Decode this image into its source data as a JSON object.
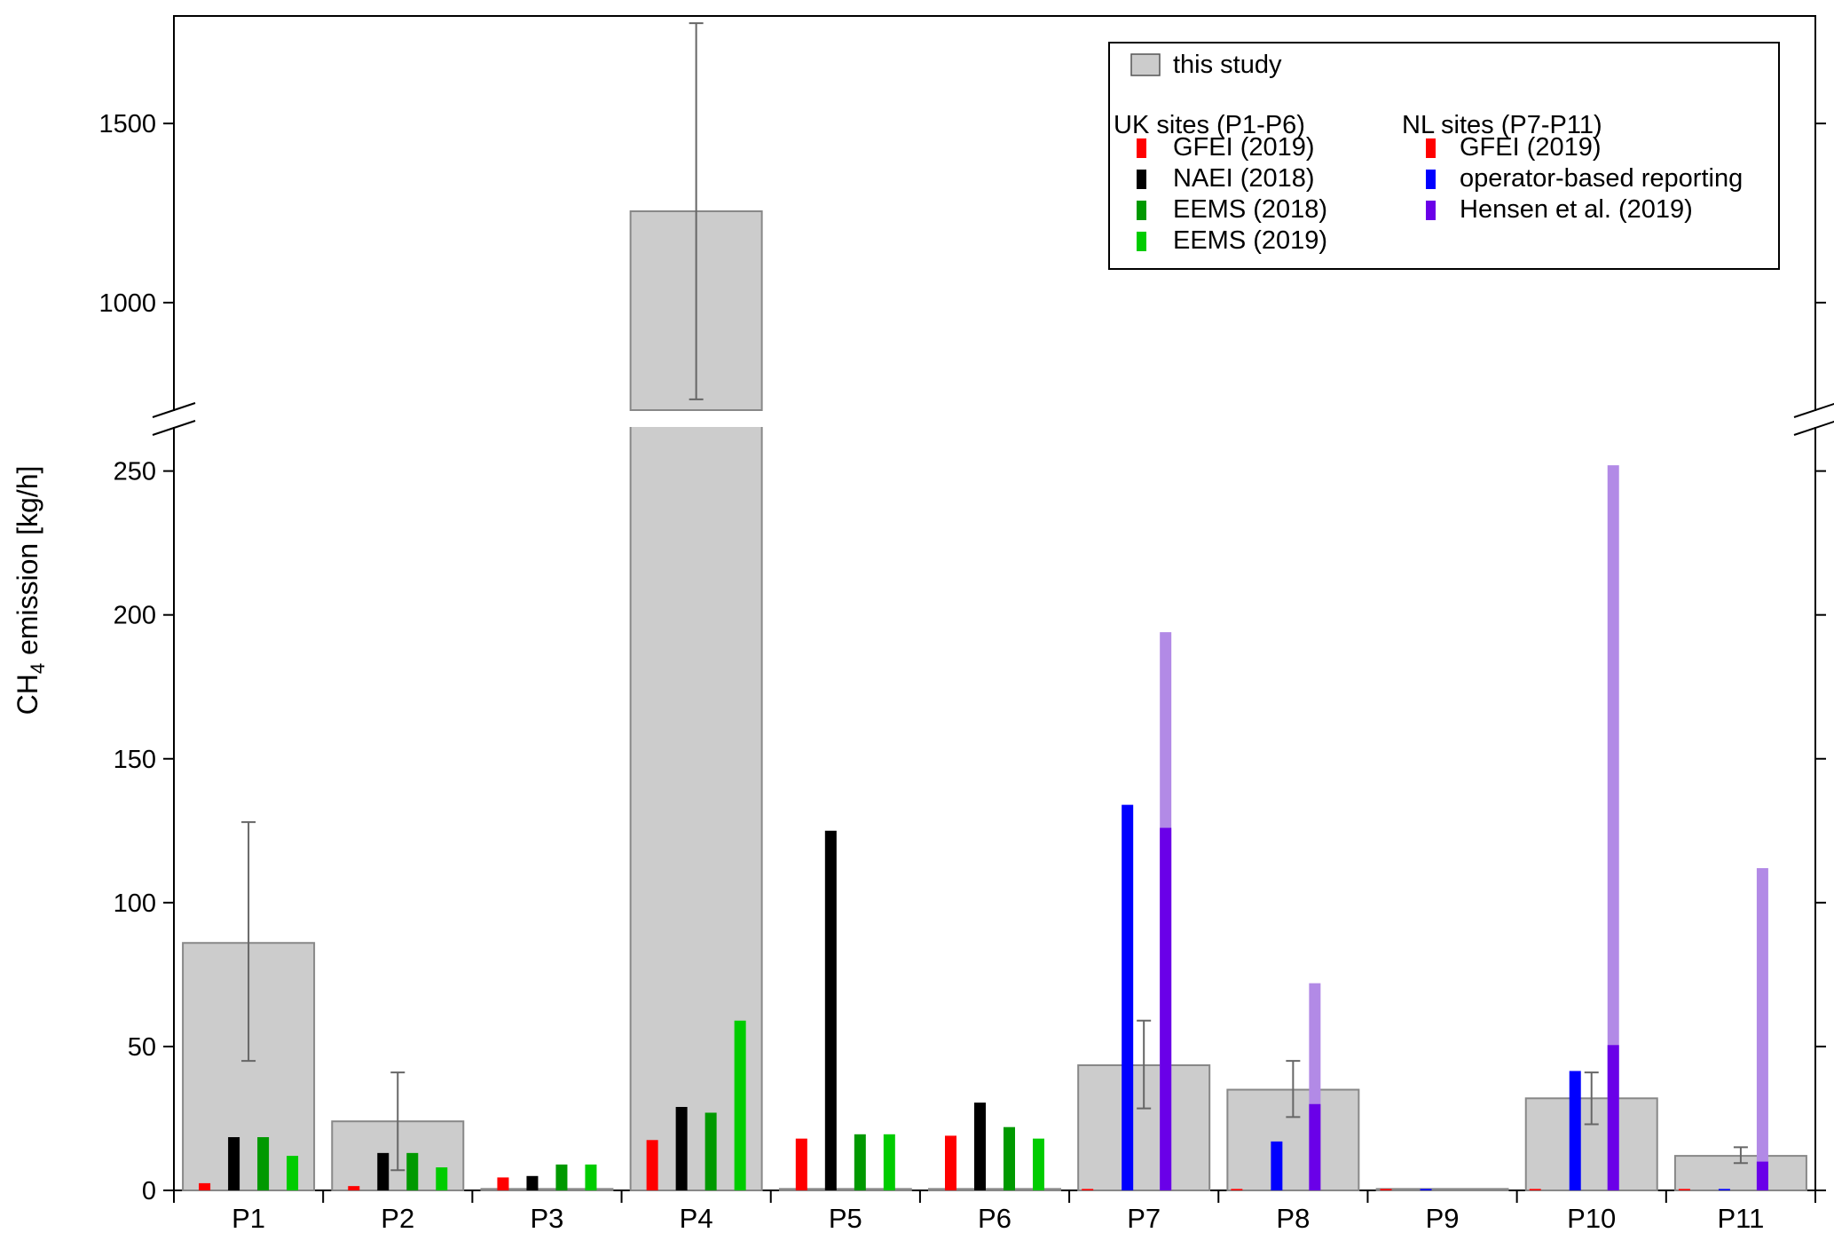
{
  "chart_data": {
    "type": "bar",
    "ylabel_main": "CH",
    "ylabel_sub": "4",
    "ylabel_rest": " emission [kg/h]",
    "categories": [
      "P1",
      "P2",
      "P3",
      "P4",
      "P5",
      "P6",
      "P7",
      "P8",
      "P9",
      "P10",
      "P11"
    ],
    "y_axis_lower": {
      "range": [
        0,
        265
      ],
      "ticks": [
        "0",
        "50",
        "100",
        "150",
        "200",
        "250"
      ]
    },
    "y_axis_upper": {
      "range": [
        700,
        1800
      ],
      "ticks": [
        "1000",
        "1500"
      ]
    },
    "axis_break": true,
    "legend": {
      "placement": "top-right",
      "main_entry": "this study",
      "uk_header": "UK sites (P1-P6)",
      "nl_header": "NL sites (P7-P11)",
      "uk_entries": [
        "GFEI (2019)",
        "NAEI (2018)",
        "EEMS (2018)",
        "EEMS (2019)"
      ],
      "nl_entries": [
        "GFEI (2019)",
        "operator-based reporting",
        "Hensen et al. (2019)"
      ]
    },
    "colors": {
      "this_study": "#cccccc",
      "gfei": "#ff0000",
      "naei": "#000000",
      "eems2018": "#009900",
      "eems2019": "#00cc00",
      "operator": "#0000ff",
      "hensen": "#6a00e8",
      "hensen_range": "#b28ae6"
    },
    "this_study": {
      "values": [
        86,
        24,
        0.5,
        1255,
        0.5,
        0.5,
        43.5,
        35,
        0.5,
        32,
        12
      ],
      "error_low": [
        45,
        7,
        null,
        730,
        null,
        null,
        28.5,
        25.5,
        null,
        23,
        9.5
      ],
      "error_high": [
        128,
        41,
        null,
        1780,
        null,
        null,
        59,
        45,
        null,
        41,
        15
      ]
    },
    "uk_series": [
      {
        "key": "gfei",
        "values": [
          2.5,
          1.5,
          4.5,
          17.5,
          18,
          19
        ]
      },
      {
        "key": "naei",
        "values": [
          18.5,
          13,
          5,
          29,
          125,
          30.5
        ]
      },
      {
        "key": "eems2018",
        "values": [
          18.5,
          13,
          9,
          27,
          19.5,
          22
        ]
      },
      {
        "key": "eems2019",
        "values": [
          12,
          8,
          9,
          59,
          19.5,
          18
        ]
      }
    ],
    "nl_series": {
      "gfei": [
        0.5,
        0.5,
        0.5,
        0.5,
        0.5
      ],
      "operator": [
        134,
        17,
        0.5,
        41.5,
        0.5
      ],
      "hensen": [
        126,
        30,
        null,
        50.5,
        10
      ],
      "hensen_upper": [
        194,
        72,
        null,
        252,
        112
      ]
    }
  }
}
